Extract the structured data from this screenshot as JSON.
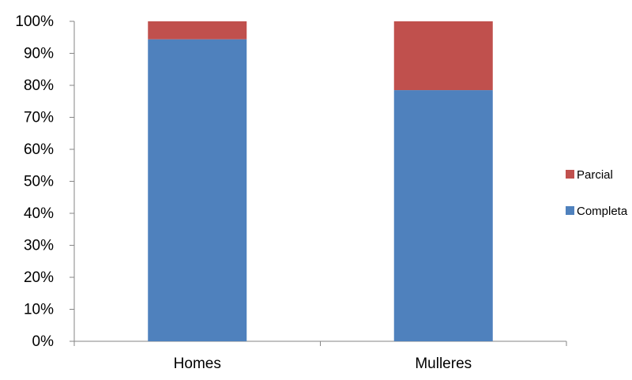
{
  "chart_data": {
    "type": "bar",
    "stacked": true,
    "percent_stacked": true,
    "categories": [
      "Homes",
      "Mulleres"
    ],
    "series": [
      {
        "name": "Completa",
        "values": [
          94.4,
          78.5
        ],
        "color": "#4F81BD"
      },
      {
        "name": "Parcial",
        "values": [
          5.6,
          21.5
        ],
        "color": "#C0504D"
      }
    ],
    "y_tick_labels": [
      "0%",
      "10%",
      "20%",
      "30%",
      "40%",
      "50%",
      "60%",
      "70%",
      "80%",
      "90%",
      "100%"
    ],
    "ylim": [
      0,
      100
    ],
    "grid": false,
    "legend_position": "right",
    "title": "",
    "xlabel": "",
    "ylabel": ""
  }
}
